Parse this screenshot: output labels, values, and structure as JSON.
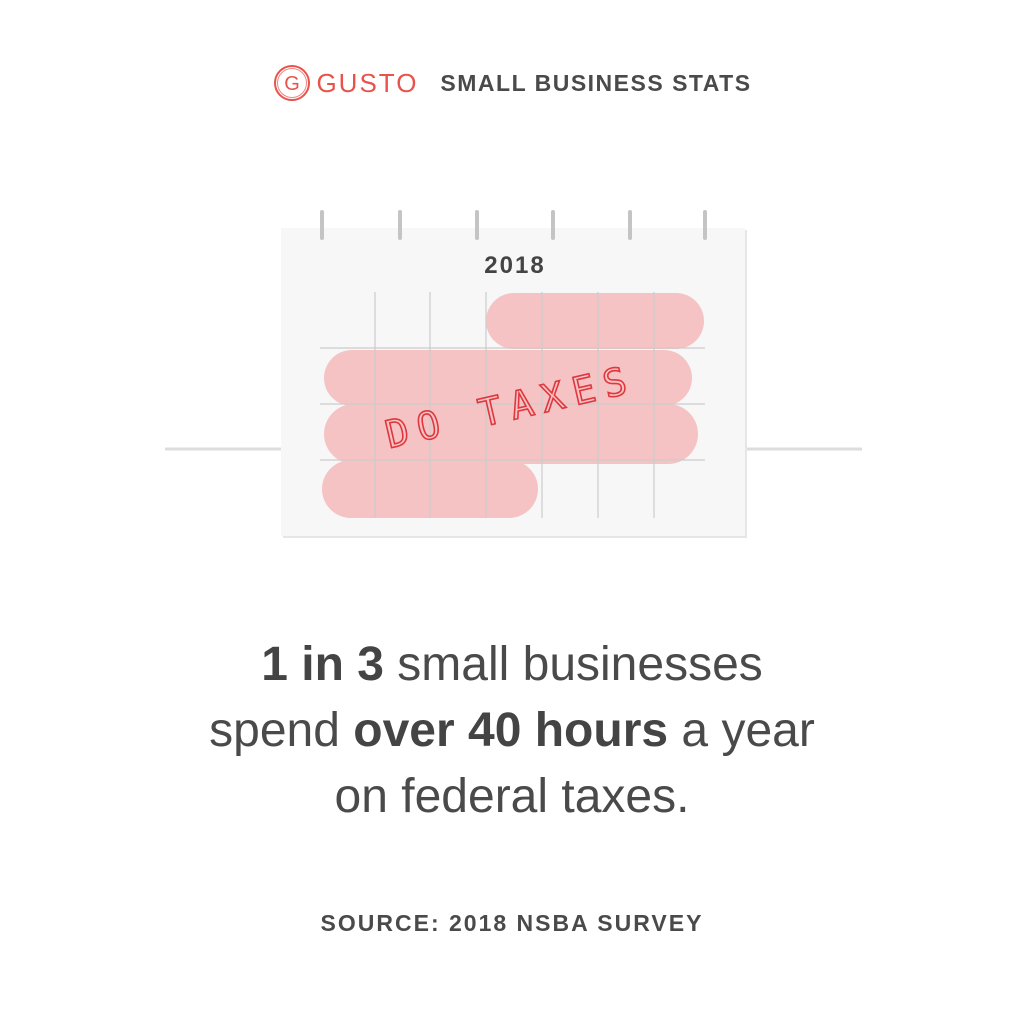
{
  "brand": {
    "logo_letter": "G",
    "name": "GUSTO",
    "color": "#e8534b"
  },
  "header": {
    "title": "SMALL BUSINESS STATS"
  },
  "calendar": {
    "year": "2018",
    "handwritten_note": "DO TAXES",
    "highlight_color": "#f5c3c3",
    "note_color": "#e0373f"
  },
  "headline": {
    "part1_bold": "1 in 3",
    "part2": " small businesses",
    "part3": "spend ",
    "part4_bold": "over 40 hours",
    "part5": " a year",
    "part6": "on federal taxes."
  },
  "source": {
    "text": "SOURCE: 2018 NSBA SURVEY"
  }
}
